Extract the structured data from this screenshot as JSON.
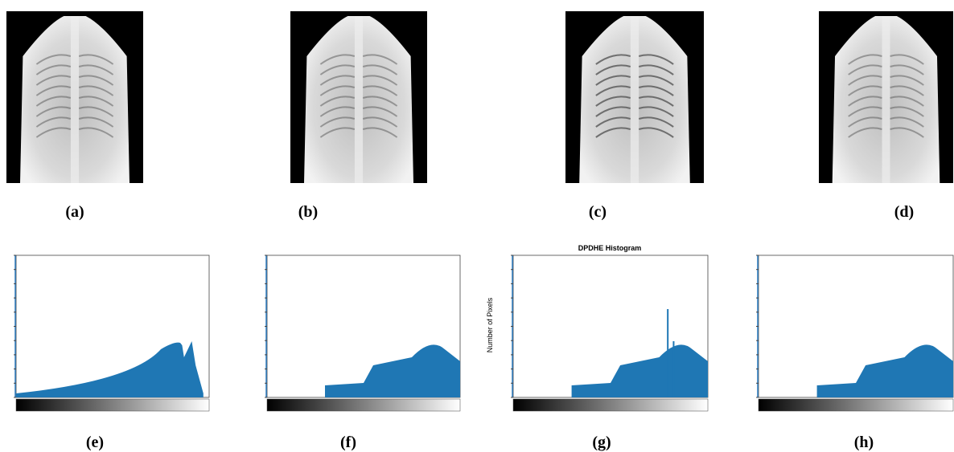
{
  "panels": [
    {
      "label": "(a)"
    },
    {
      "label": "(b)"
    },
    {
      "label": "(c)"
    },
    {
      "label": "(d)"
    },
    {
      "label": "(e)"
    },
    {
      "label": "(f)"
    },
    {
      "label": "(g)"
    },
    {
      "label": "(h)"
    }
  ],
  "histogram_g": {
    "title": "DPDHE Histogram",
    "y_label": "Number of Pixels"
  }
}
